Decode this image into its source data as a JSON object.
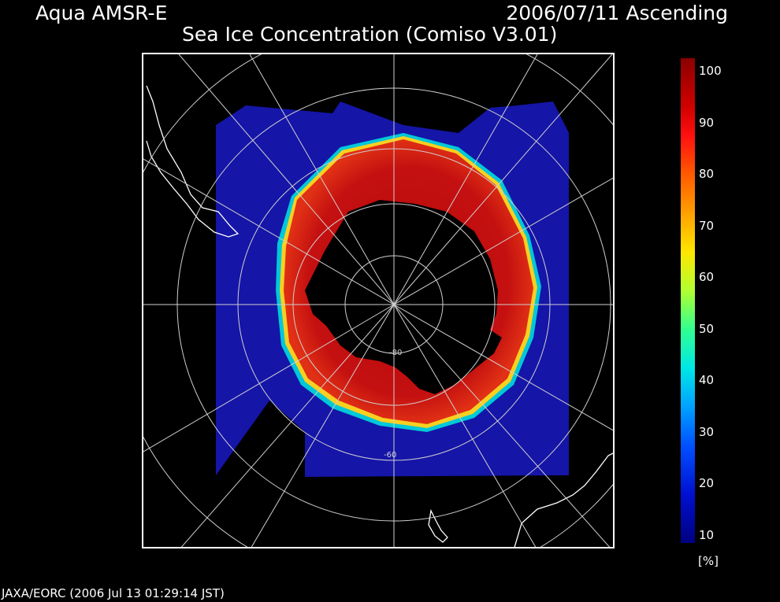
{
  "header": {
    "satellite": "Aqua AMSR-E",
    "date_pass": "2006/07/11 Ascending",
    "product": "Sea Ice Concentration (Comiso V3.01)"
  },
  "map": {
    "projection": "South polar stereographic",
    "latitude_labels": [
      "-80",
      "-60"
    ],
    "colors": {
      "background": "#000000",
      "open_water": "#1515a8",
      "ice_high": "#b8080a",
      "ice_mid": "#e03015",
      "edge_yellow": "#ffe000",
      "edge_cyan": "#00d0d0",
      "grid": "#cfcfcf",
      "coastline": "#ffffff"
    }
  },
  "colorbar": {
    "ticks": [
      "100",
      "90",
      "80",
      "70",
      "60",
      "50",
      "40",
      "30",
      "20",
      "10"
    ],
    "unit": "[%]",
    "range": [
      10,
      100
    ]
  },
  "footer": {
    "credit": "JAXA/EORC (2006 Jul 13 01:29:14 JST)"
  }
}
